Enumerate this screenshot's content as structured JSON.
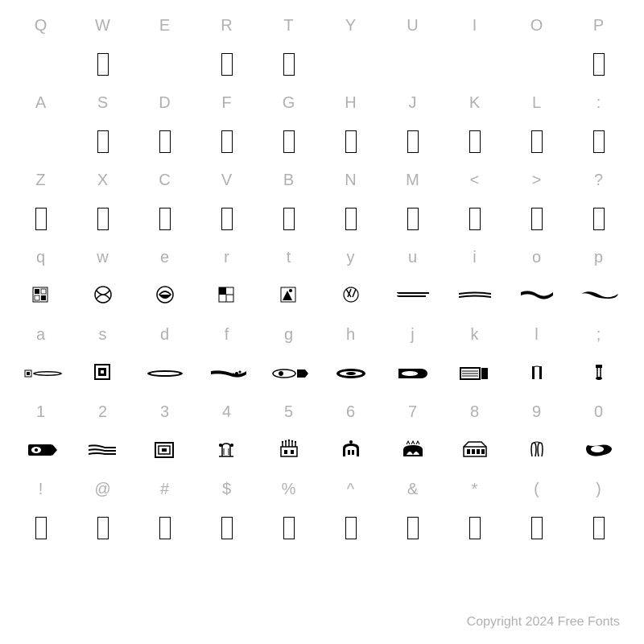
{
  "copyright": "Copyright 2024 Free Fonts",
  "colors": {
    "label": "#b0b0b0",
    "glyph": "#000000",
    "background": "#ffffff"
  },
  "fontsize": {
    "label": 20,
    "copyright": 16
  },
  "rows": [
    {
      "type": "label",
      "cells": [
        "Q",
        "W",
        "E",
        "R",
        "T",
        "Y",
        "U",
        "I",
        "O",
        "P"
      ]
    },
    {
      "type": "glyph",
      "cells": [
        {
          "t": "empty"
        },
        {
          "t": "notdef"
        },
        {
          "t": "empty"
        },
        {
          "t": "notdef"
        },
        {
          "t": "notdef"
        },
        {
          "t": "empty"
        },
        {
          "t": "empty"
        },
        {
          "t": "empty"
        },
        {
          "t": "empty"
        },
        {
          "t": "notdef"
        }
      ]
    },
    {
      "type": "label",
      "cells": [
        "A",
        "S",
        "D",
        "F",
        "G",
        "H",
        "J",
        "K",
        "L",
        ":"
      ]
    },
    {
      "type": "glyph",
      "cells": [
        {
          "t": "empty"
        },
        {
          "t": "notdef"
        },
        {
          "t": "notdef"
        },
        {
          "t": "notdef"
        },
        {
          "t": "notdef"
        },
        {
          "t": "notdef"
        },
        {
          "t": "notdef"
        },
        {
          "t": "notdef"
        },
        {
          "t": "notdef"
        },
        {
          "t": "notdef"
        }
      ]
    },
    {
      "type": "label",
      "cells": [
        "Z",
        "X",
        "C",
        "V",
        "B",
        "N",
        "M",
        "<",
        ">",
        "?"
      ]
    },
    {
      "type": "glyph",
      "cells": [
        {
          "t": "notdef"
        },
        {
          "t": "notdef"
        },
        {
          "t": "notdef"
        },
        {
          "t": "notdef"
        },
        {
          "t": "notdef"
        },
        {
          "t": "notdef"
        },
        {
          "t": "notdef"
        },
        {
          "t": "notdef"
        },
        {
          "t": "notdef"
        },
        {
          "t": "notdef"
        }
      ]
    },
    {
      "type": "label",
      "cells": [
        "q",
        "w",
        "e",
        "r",
        "t",
        "y",
        "u",
        "i",
        "o",
        "p"
      ]
    },
    {
      "type": "glyph",
      "cells": [
        {
          "t": "svg",
          "id": "g-q"
        },
        {
          "t": "svg",
          "id": "g-w"
        },
        {
          "t": "svg",
          "id": "g-e"
        },
        {
          "t": "svg",
          "id": "g-r"
        },
        {
          "t": "svg",
          "id": "g-t"
        },
        {
          "t": "svg",
          "id": "g-y"
        },
        {
          "t": "svg",
          "id": "g-u"
        },
        {
          "t": "svg",
          "id": "g-i"
        },
        {
          "t": "svg",
          "id": "g-o"
        },
        {
          "t": "svg",
          "id": "g-p"
        }
      ]
    },
    {
      "type": "label",
      "cells": [
        "a",
        "s",
        "d",
        "f",
        "g",
        "h",
        "j",
        "k",
        "l",
        ";"
      ]
    },
    {
      "type": "glyph",
      "cells": [
        {
          "t": "svg",
          "id": "g-a"
        },
        {
          "t": "svg",
          "id": "g-s"
        },
        {
          "t": "svg",
          "id": "g-d"
        },
        {
          "t": "svg",
          "id": "g-f"
        },
        {
          "t": "svg",
          "id": "g-g"
        },
        {
          "t": "svg",
          "id": "g-h"
        },
        {
          "t": "svg",
          "id": "g-j"
        },
        {
          "t": "svg",
          "id": "g-k"
        },
        {
          "t": "svg",
          "id": "g-l"
        },
        {
          "t": "svg",
          "id": "g-semi"
        }
      ]
    },
    {
      "type": "label",
      "cells": [
        "1",
        "2",
        "3",
        "4",
        "5",
        "6",
        "7",
        "8",
        "9",
        "0"
      ]
    },
    {
      "type": "glyph",
      "cells": [
        {
          "t": "svg",
          "id": "g-1"
        },
        {
          "t": "svg",
          "id": "g-2"
        },
        {
          "t": "svg",
          "id": "g-3"
        },
        {
          "t": "svg",
          "id": "g-4"
        },
        {
          "t": "svg",
          "id": "g-5"
        },
        {
          "t": "svg",
          "id": "g-6"
        },
        {
          "t": "svg",
          "id": "g-7"
        },
        {
          "t": "svg",
          "id": "g-8"
        },
        {
          "t": "svg",
          "id": "g-9"
        },
        {
          "t": "svg",
          "id": "g-0"
        }
      ]
    },
    {
      "type": "label",
      "cells": [
        "!",
        "@",
        "#",
        "$",
        "%",
        "^",
        "&",
        "*",
        "(",
        ")"
      ]
    },
    {
      "type": "glyph",
      "cells": [
        {
          "t": "notdef"
        },
        {
          "t": "notdef"
        },
        {
          "t": "notdef"
        },
        {
          "t": "notdef"
        },
        {
          "t": "notdef"
        },
        {
          "t": "notdef"
        },
        {
          "t": "notdef"
        },
        {
          "t": "notdef"
        },
        {
          "t": "notdef"
        },
        {
          "t": "notdef"
        }
      ]
    },
    {
      "type": "label",
      "cells": [
        "",
        "",
        "",
        "",
        "",
        "",
        "",
        "",
        "",
        ""
      ]
    }
  ],
  "glyph_svgs": {
    "g-q": "<rect x='18' y='6' width='18' height='18' fill='none' stroke='#000'/><rect x='20' y='8' width='6' height='6' fill='#000'/><rect x='28' y='8' width='6' height='6' fill='none' stroke='#000' stroke-width='0.8'/><rect x='20' y='16' width='6' height='6' fill='none' stroke='#000' stroke-width='0.8'/><rect x='28' y='16' width='6' height='6' fill='#000'/>",
    "g-w": "<circle cx='28' cy='15' r='10' fill='none' stroke='#000' stroke-width='1.5'/><path d='M20 10 Q28 20 36 10 M20 20 Q28 10 36 20' fill='none' stroke='#000' stroke-width='1.5'/>",
    "g-e": "<circle cx='28' cy='15' r='10' fill='none' stroke='#000' stroke-width='1.5'/><path d='M20 15 Q28 5 36 15 Q28 25 20 15' fill='#000'/><path d='M22 15 Q28 9 34 15' fill='#fff'/>",
    "g-r": "<rect x='18' y='6' width='18' height='18' fill='none' stroke='#000'/><rect x='18' y='6' width='9' height='9' fill='#000'/><rect x='27' y='15' width='9' height='9' fill='none' stroke='#000'/>",
    "g-t": "<rect x='18' y='6' width='18' height='18' fill='none' stroke='#000'/><path d='M20 22 L26 10 L32 22 Z' fill='#000'/><circle cx='30' cy='10' r='2' fill='#000'/>",
    "g-y": "<circle cx='28' cy='15' r='9' fill='none' stroke='#000' stroke-width='1.2'/><path d='M22 8 L28 18 M28 8 L24 18 M34 8 L30 18' stroke='#000' stroke-width='1.5'/>",
    "g-u": "<path d='M8 12 L48 12 L48 14 L12 14 Q8 14 8 12 M8 16 L44 16 L44 18 L12 18 Q8 18 8 16' fill='#000'/>",
    "g-i": "<path d='M8 13 Q28 10 48 13 L48 15 Q28 12 8 15 Z M8 17 Q28 14 48 17 L48 19 Q28 16 8 19 Z' fill='#000'/>",
    "g-o": "<path d='M8 12 Q18 8 28 14 Q38 20 48 12 L48 16 Q38 24 28 18 Q18 12 8 16 Z' fill='#000'/>",
    "g-p": "<path d='M6 14 Q16 8 28 15 Q40 22 52 14 Q50 20 40 20 Q28 20 20 16 Q12 12 6 14 Z' fill='#000'/>",
    "g-a": "<rect x='8' y='13' width='8' height='8' fill='none' stroke='#000'/><rect x='10' y='15' width='4' height='4' fill='#000'/><ellipse cx='36' cy='17' rx='18' ry='3' fill='#000'/><ellipse cx='36' cy='17' rx='15' ry='1.5' fill='#fff'/>",
    "g-s": "<rect x='18' y='6' width='18' height='18' fill='none' stroke='#000' stroke-width='2'/><rect x='22' y='10' width='10' height='10' fill='#000'/><rect x='25' y='13' width='4' height='4' fill='#fff'/>",
    "g-d": "<ellipse cx='28' cy='17' rx='22' ry='4' fill='#000'/><ellipse cx='28' cy='17' rx='18' ry='2' fill='#fff'/>",
    "g-f": "<path d='M8 14 Q20 12 32 16 Q44 20 52 14 L52 18 Q44 24 32 20 Q20 16 8 18 Z' fill='#000'/><circle cx='40' cy='17' r='2' fill='#000'/><circle cx='44' cy='15' r='1.5' fill='#000'/><circle cx='36' cy='18' r='1.5' fill='#000'/>",
    "g-g": "<ellipse cx='22' cy='17' rx='14' ry='5' fill='none' stroke='#000' stroke-width='1.5'/><circle cx='18' cy='17' r='3' fill='#000'/><rect x='38' y='12' width='10' height='10' fill='#000'/><path d='M48 12 L52 17 L48 22 Z' fill='#000'/>",
    "g-h": "<ellipse cx='28' cy='17' rx='18' ry='6' fill='#000'/><ellipse cx='28' cy='17' rx='14' ry='3' fill='#fff'/><ellipse cx='28' cy='17' rx='6' ry='2' fill='#000'/>",
    "g-j": "<rect x='10' y='11' width='28' height='12' fill='#000'/><ellipse cx='38' cy='17' rx='8' ry='6' fill='#000'/><ellipse cx='24' cy='17' rx='10' ry='3' fill='#fff'/>",
    "g-k": "<rect x='10' y='10' width='24' height='14' fill='none' stroke='#000' stroke-width='2'/><path d='M12 14 L32 14 M12 17 L32 17 M12 20 L32 20' stroke='#000'/><rect x='36' y='10' width='8' height='14' fill='#000'/>",
    "g-l": "<rect x='22' y='8' width='3' height='16' fill='#000'/><rect x='31' y='8' width='3' height='16' fill='#000'/><path d='M22 10 Q28 6 34 10' fill='none' stroke='#000'/>",
    "g-semi": "<rect x='24' y='6' width='8' height='4' fill='#000'/><path d='M26 10 L26 22 M30 10 L30 22' stroke='#000' stroke-width='1.5'/><ellipse cx='28' cy='23' rx='4' ry='2' fill='#000'/>",
    "g-1": "<rect x='12' y='9' width='30' height='14' fill='#000' rx='2'/><ellipse cx='22' cy='16' rx='6' ry='4' fill='#fff'/><circle cx='22' cy='16' r='2' fill='#000'/><path d='M42 9 L48 16 L42 23 Z' fill='#000'/>",
    "g-2": "<path d='M10 10 Q20 8 30 12 L44 12 L44 14 L30 14 Q20 10 10 12 Z' fill='#000'/><path d='M10 15 Q20 13 30 16 L44 16 L44 18 L30 18 Q20 15 10 17 Z' fill='#000'/><path d='M10 20 Q20 18 30 20 L44 20 L44 22 L30 22 Q20 20 10 22 Z' fill='#000'/>",
    "g-3": "<rect x='16' y='7' width='22' height='18' fill='none' stroke='#000' stroke-width='2'/><rect x='20' y='11' width='14' height='10' fill='none' stroke='#000' stroke-width='1.5'/><rect x='24' y='14' width='6' height='4' fill='#000'/>",
    "g-4": "<path d='M22 24 L22 12 Q22 8 27 8 Q32 8 32 12 L32 24' fill='none' stroke='#000' stroke-width='1.5'/><circle cx='20' cy='10' r='2' fill='#000'/><circle cx='34' cy='10' r='2' fill='#000'/><path d='M18 24 L36 24' stroke='#000' stroke-width='1.5'/><path d='M24 14 L24 22 M30 14 L30 22' stroke='#000'/>",
    "g-5": "<rect x='18' y='12' width='20' height='12' fill='none' stroke='#000' stroke-width='1.5'/><path d='M20 12 L20 6 M24 12 L24 5 M28 12 L28 4 M32 12 L32 5 M36 12 L36 6' stroke='#000' stroke-width='1.5'/><circle cx='20' cy='6' r='1.2' fill='#000'/><circle cx='24' cy='5' r='1.2' fill='#000'/><circle cx='28' cy='4' r='1.2' fill='#000'/><circle cx='32' cy='5' r='1.2' fill='#000'/><circle cx='36' cy='6' r='1.2' fill='#000'/><rect x='22' y='16' width='4' height='5' fill='#000'/><rect x='30' y='16' width='4' height='5' fill='#000'/>",
    "g-6": "<path d='M18 24 L18 14 Q18 8 28 8 Q38 8 38 14 L38 24 Z' fill='#000'/><path d='M21 24 L21 15 Q21 11 28 11 Q35 11 35 15 L35 24 Z' fill='#fff'/><rect x='24' y='16' width='3' height='6' fill='#000'/><rect x='29' y='16' width='3' height='6' fill='#000'/><circle cx='28' cy='6' r='2' fill='#000'/>",
    "g-7": "<path d='M16 24 L16 16 Q16 10 28 10 Q40 10 40 16 L40 24 Z' fill='#000'/><path d='M20 22 Q24 14 28 22 Q32 14 36 22' fill='#fff'/><path d='M20 9 L22 5 L24 9 M26 9 L28 5 L30 9 M32 9 L34 5 L36 9' stroke='#000' fill='none'/>",
    "g-8": "<rect x='14' y='12' width='28' height='12' fill='none' stroke='#000' stroke-width='1.5'/><path d='M14 12 L20 6 L36 6 L42 12' fill='none' stroke='#000' stroke-width='1.5'/><rect x='18' y='15' width='4' height='6' fill='#000'/><rect x='24' y='15' width='4' height='6' fill='#000'/><rect x='30' y='15' width='4' height='6' fill='#000'/><rect x='36' y='15' width='4' height='6' fill='#000'/>",
    "g-9": "<path d='M22 24 Q20 14 22 8 Q24 6 26 8 Q28 14 26 24 M30 24 Q28 14 30 8 Q32 6 34 8 Q36 14 34 24' fill='none' stroke='#000' stroke-width='1.5'/><path d='M22 8 Q28 4 34 8' fill='none' stroke='#000'/>",
    "g-0": "<path d='M14 10 Q10 14 14 20 Q20 26 34 22 Q44 20 44 14 Q40 8 30 10 Q20 12 14 10 Z' fill='#000'/><ellipse cx='26' cy='15' rx='8' ry='4' fill='#fff'/>"
  }
}
